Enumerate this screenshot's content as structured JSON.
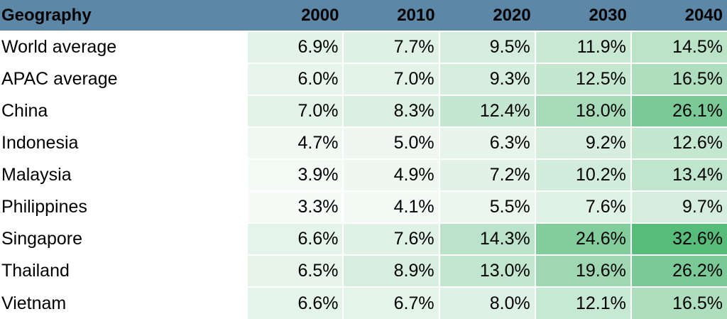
{
  "colors": {
    "header_bg": "#5d87a6",
    "scale_low": "#f7fbf8",
    "scale_high": "#57bb7a"
  },
  "chart_data": {
    "type": "table",
    "columns": [
      "Geography",
      "2000",
      "2010",
      "2020",
      "2030",
      "2040"
    ],
    "rows": [
      {
        "label": "World average",
        "values": [
          6.9,
          7.7,
          9.5,
          11.9,
          14.5
        ]
      },
      {
        "label": "APAC average",
        "values": [
          6.0,
          7.0,
          9.3,
          12.5,
          16.5
        ]
      },
      {
        "label": "China",
        "values": [
          7.0,
          8.3,
          12.4,
          18.0,
          26.1
        ]
      },
      {
        "label": "Indonesia",
        "values": [
          4.7,
          5.0,
          6.3,
          9.2,
          12.6
        ]
      },
      {
        "label": "Malaysia",
        "values": [
          3.9,
          4.9,
          7.2,
          10.2,
          13.4
        ]
      },
      {
        "label": "Philippines",
        "values": [
          3.3,
          4.1,
          5.5,
          7.6,
          9.7
        ]
      },
      {
        "label": "Singapore",
        "values": [
          6.6,
          7.6,
          14.3,
          24.6,
          32.6
        ]
      },
      {
        "label": "Thailand",
        "values": [
          6.5,
          8.9,
          13.0,
          19.6,
          26.2
        ]
      },
      {
        "label": "Vietnam",
        "values": [
          6.6,
          6.7,
          8.0,
          12.1,
          16.5
        ]
      }
    ],
    "value_suffix": "%",
    "color_scale": "green heatmap, light for low values, darker green for high values"
  }
}
